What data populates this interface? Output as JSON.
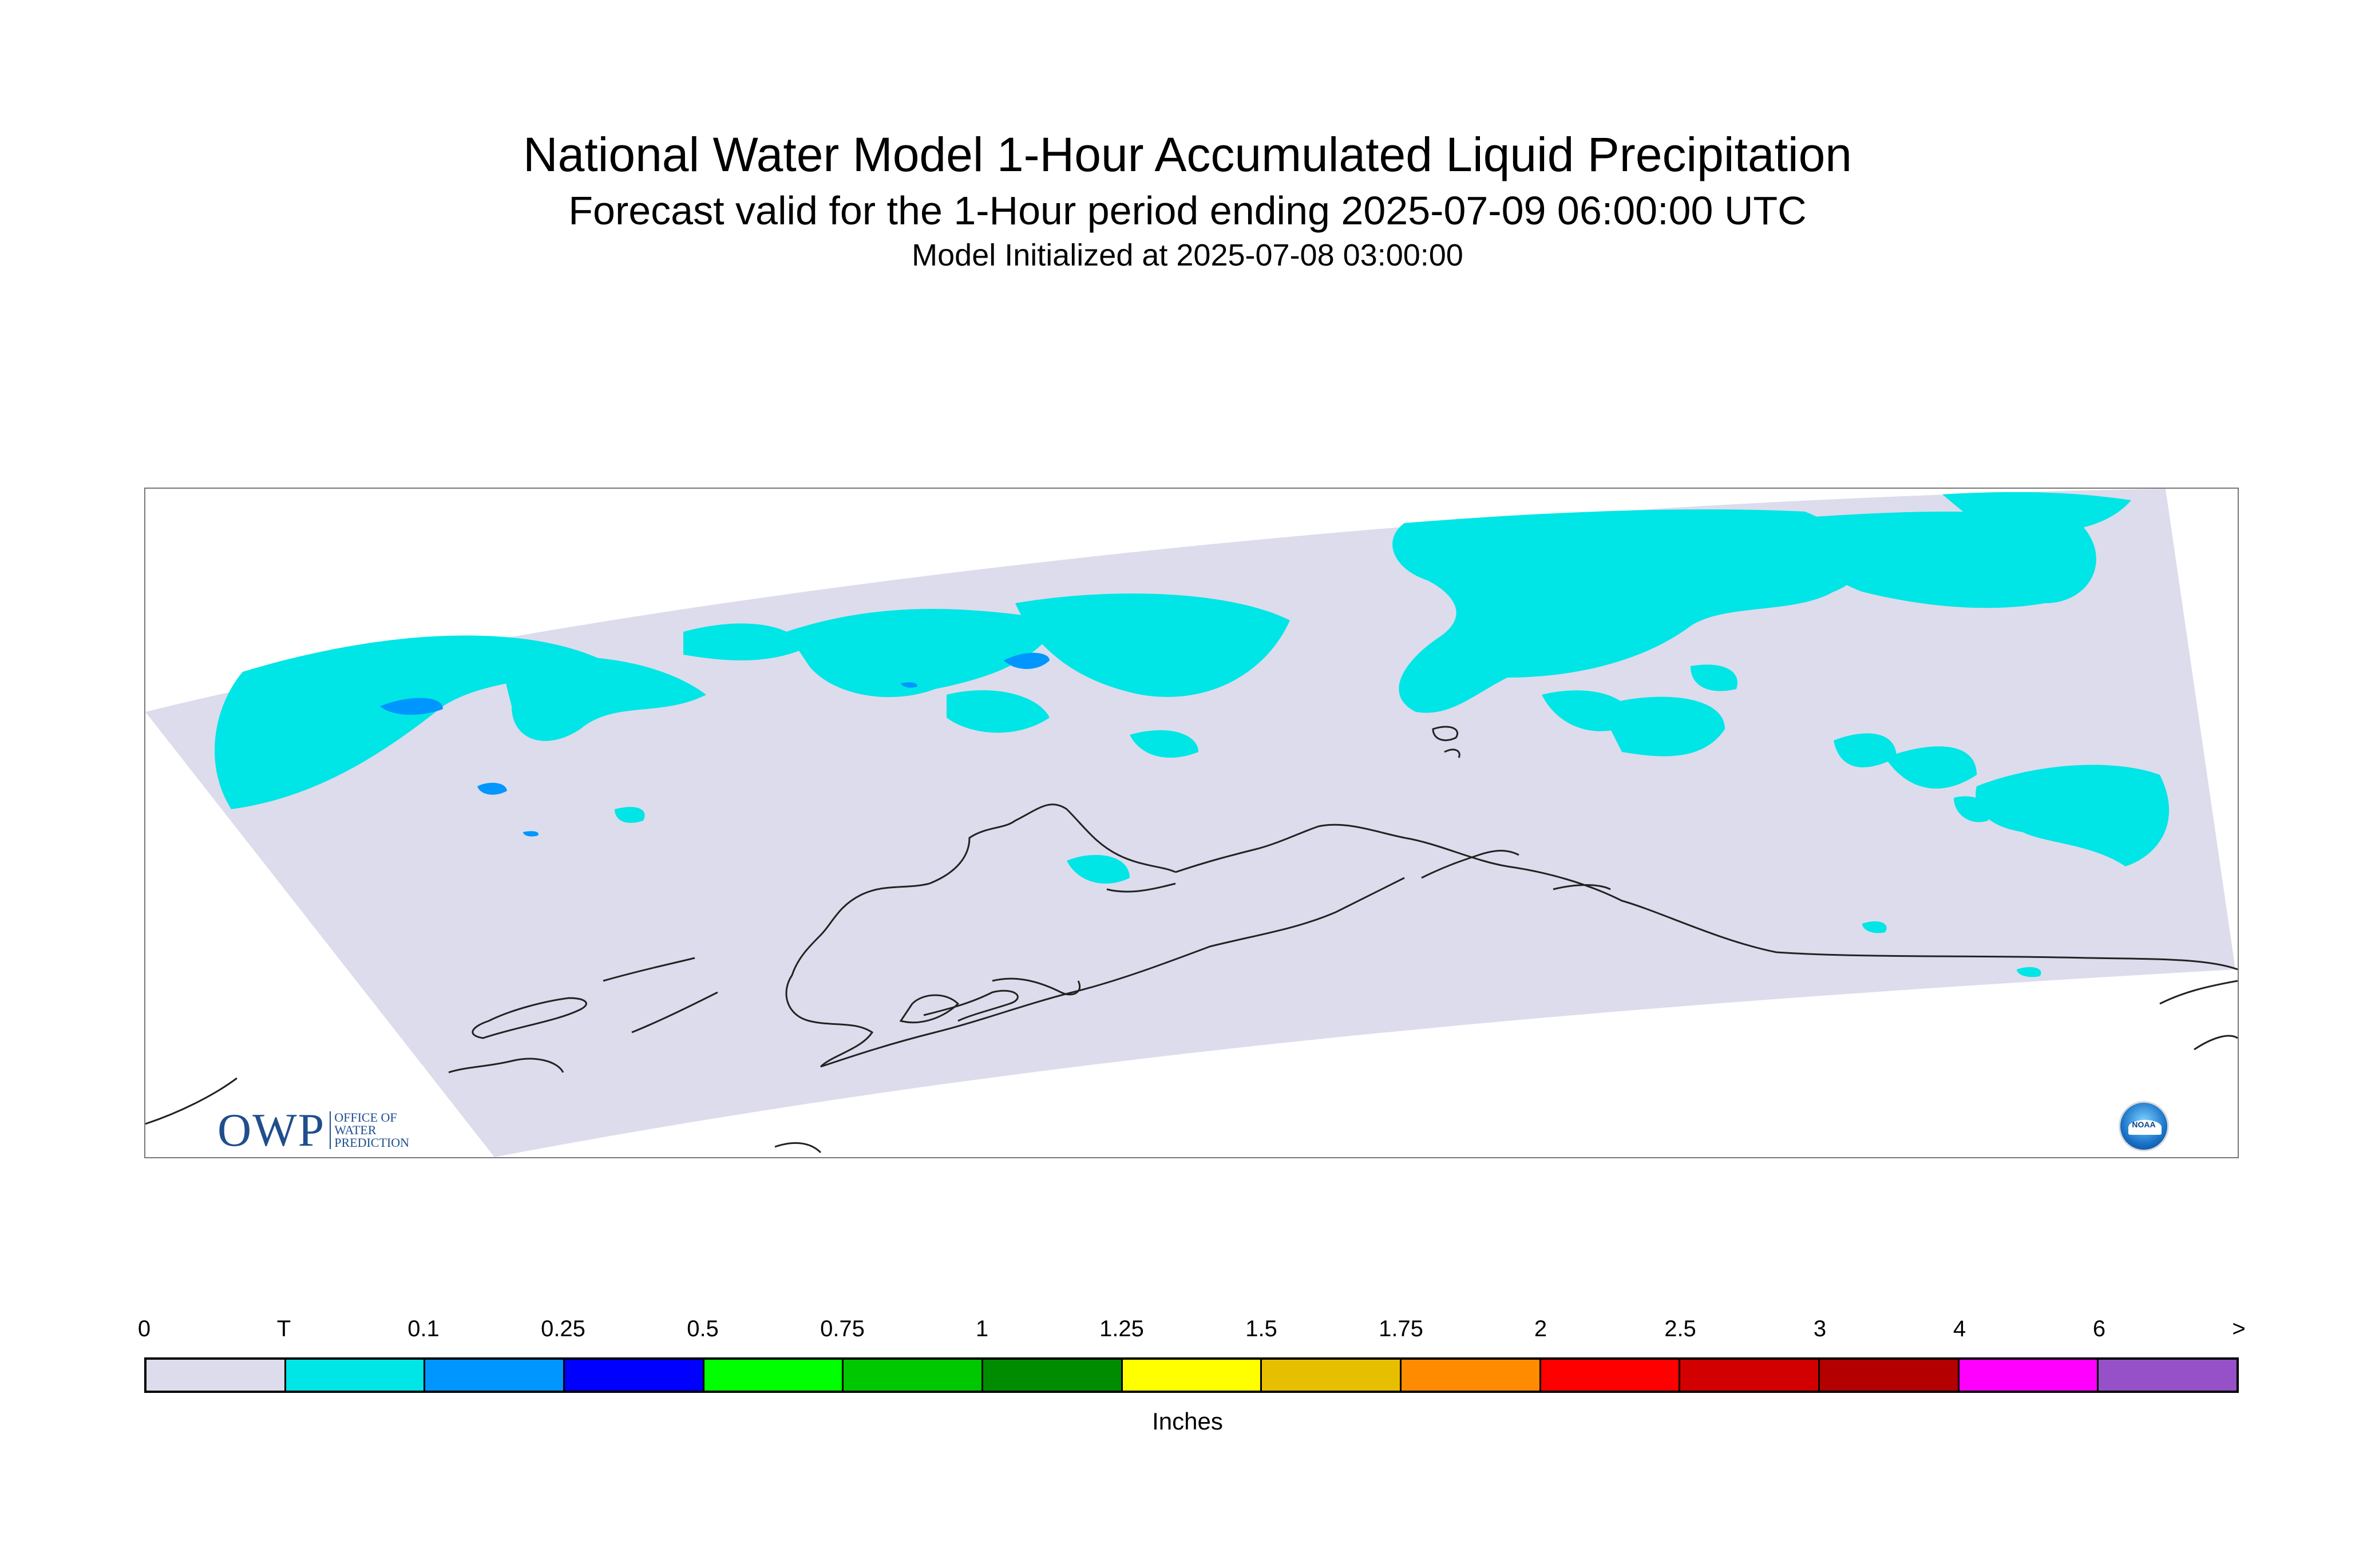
{
  "title": "National Water Model 1-Hour Accumulated Liquid Precipitation",
  "subtitle": "Forecast valid for the 1-Hour period ending 2025-07-09 06:00:00 UTC",
  "init_line": "Model Initialized at 2025-07-08 03:00:00",
  "colors": {
    "domain_fill": "#dcdcec",
    "trace": "#00e5e5",
    "light_blue": "#0096ff",
    "coast": "#222222"
  },
  "logos": {
    "owp_big": "OWP",
    "owp_small": [
      "OFFICE OF",
      "WATER",
      "PREDICTION"
    ],
    "noaa_label": "NOAA"
  },
  "legend": {
    "labels": [
      "0",
      "T",
      "0.1",
      "0.25",
      "0.5",
      "0.75",
      "1",
      "1.25",
      "1.5",
      "1.75",
      "2",
      "2.5",
      "3",
      "4",
      "6",
      ">"
    ],
    "colors": [
      "#dcdcec",
      "#00e5e5",
      "#0096ff",
      "#0000ff",
      "#00ff00",
      "#00c800",
      "#008c00",
      "#ffff00",
      "#e6c000",
      "#ff8c00",
      "#ff0000",
      "#d20000",
      "#b40000",
      "#ff00ff",
      "#9650c8"
    ],
    "units": "Inches"
  }
}
